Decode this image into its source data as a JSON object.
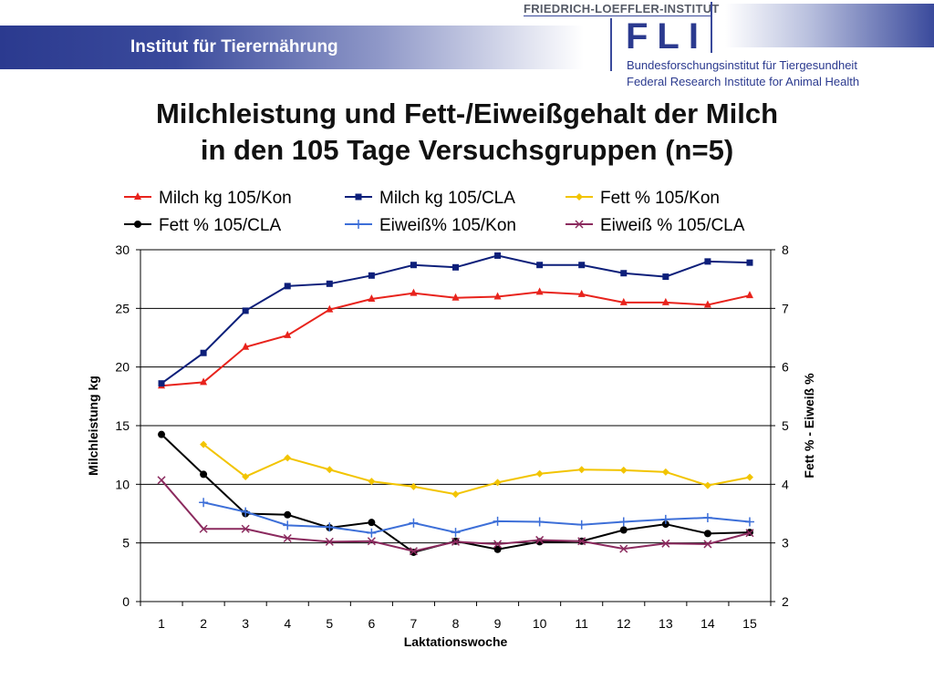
{
  "header": {
    "institute": "Institut für Tierernährung",
    "fli_top": "FRIEDRICH-LOEFFLER-INSTITUT",
    "fli_logo": "FLI",
    "fli_sub1": "Bundesforschungsinstitut für Tiergesundheit",
    "fli_sub2": "Federal Research Institute for Animal Health"
  },
  "title_line1": "Milchleistung und Fett-/Eiweißgehalt der Milch",
  "title_line2": "in den 105 Tage Versuchsgruppen (n=5)",
  "chart_data": {
    "type": "line",
    "x": [
      1,
      2,
      3,
      4,
      5,
      6,
      7,
      8,
      9,
      10,
      11,
      12,
      13,
      14,
      15
    ],
    "xlabel": "Laktationswoche",
    "ylabel": "Milchleistung kg",
    "y2label": "Fett % - Eiweiß %",
    "ylim": [
      0,
      30
    ],
    "yticks": [
      0,
      5,
      10,
      15,
      20,
      25,
      30
    ],
    "y2lim": [
      2,
      8
    ],
    "y2ticks": [
      2,
      3,
      4,
      5,
      6,
      7,
      8
    ],
    "grid": "horizontal",
    "legend_position": "top",
    "series": [
      {
        "name": "Milch kg 105/Kon",
        "axis": "left",
        "color": "#e8231c",
        "marker": "triangle",
        "values": [
          18.4,
          18.7,
          21.7,
          22.7,
          24.9,
          25.8,
          26.3,
          25.9,
          26.0,
          26.4,
          26.2,
          25.5,
          25.5,
          25.3,
          26.1
        ]
      },
      {
        "name": "Milch kg 105/CLA",
        "axis": "left",
        "color": "#0d1f7a",
        "marker": "square",
        "values": [
          18.6,
          21.2,
          24.8,
          26.9,
          27.1,
          27.8,
          28.7,
          28.5,
          29.5,
          28.7,
          28.7,
          28.0,
          27.7,
          29.0,
          28.9
        ]
      },
      {
        "name": "Fett % 105/Kon",
        "axis": "right",
        "color": "#f2c400",
        "marker": "diamond",
        "values": [
          null,
          4.68,
          4.13,
          4.45,
          4.25,
          4.05,
          3.96,
          3.83,
          4.03,
          4.18,
          4.25,
          4.24,
          4.21,
          3.98,
          4.12
        ]
      },
      {
        "name": "Fett % 105/CLA",
        "axis": "right",
        "color": "#000000",
        "marker": "circle",
        "values": [
          4.85,
          4.17,
          3.5,
          3.48,
          3.26,
          3.35,
          2.84,
          3.03,
          2.89,
          3.02,
          3.03,
          3.22,
          3.32,
          3.16,
          3.18
        ]
      },
      {
        "name": "Eiweiß% 105/Kon",
        "axis": "right",
        "color": "#3d6fd8",
        "marker": "plus",
        "values": [
          null,
          3.69,
          3.53,
          3.3,
          3.27,
          3.17,
          3.34,
          3.18,
          3.37,
          3.36,
          3.31,
          3.36,
          3.4,
          3.43,
          3.36
        ]
      },
      {
        "name": "Eiweiß % 105/CLA",
        "axis": "right",
        "color": "#8b2a5e",
        "marker": "x",
        "values": [
          4.07,
          3.24,
          3.24,
          3.08,
          3.02,
          3.03,
          2.86,
          3.02,
          2.98,
          3.05,
          3.03,
          2.9,
          2.99,
          2.98,
          3.17
        ]
      }
    ]
  }
}
